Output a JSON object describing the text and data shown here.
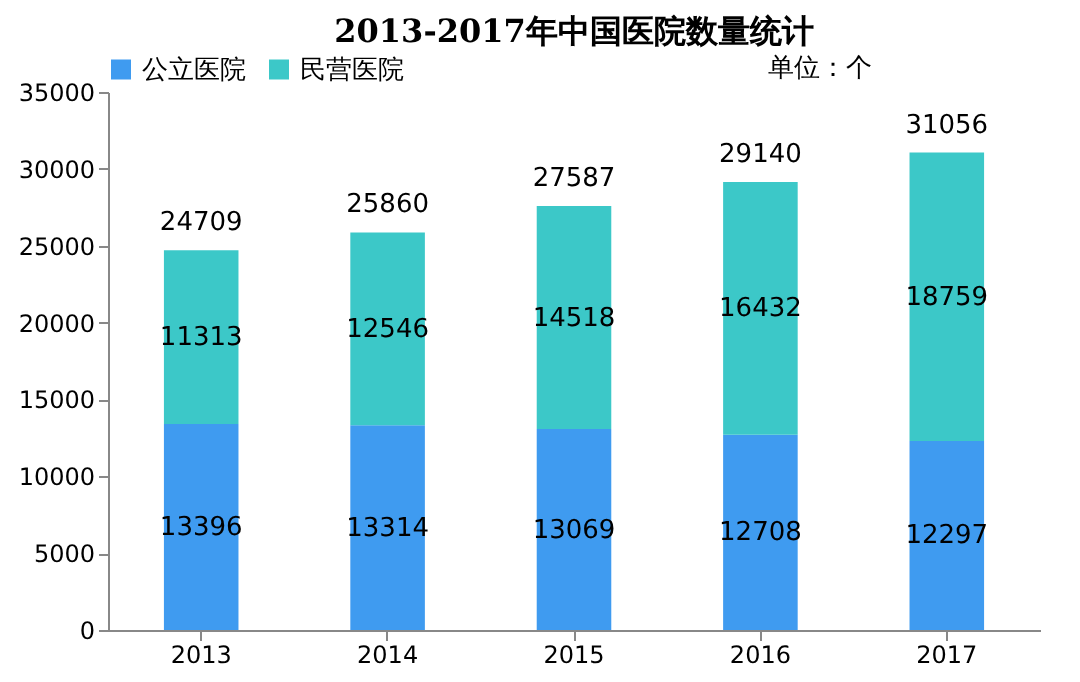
{
  "chart_data": {
    "type": "bar",
    "stacked": true,
    "title": "2013-2017年中国医院数量统计",
    "categories": [
      "2013",
      "2014",
      "2015",
      "2016",
      "2017"
    ],
    "series": [
      {
        "name": "公立医院",
        "color": "#3f9bf0",
        "values": [
          13396,
          13314,
          13069,
          12708,
          12297
        ]
      },
      {
        "name": "民营医院",
        "color": "#3cc8c8",
        "values": [
          11313,
          12546,
          14518,
          16432,
          18759
        ]
      }
    ],
    "totals": [
      "24709",
      "25860",
      "27587",
      "29140",
      "31056"
    ],
    "data_labels": true,
    "ylim": [
      0,
      35000
    ],
    "yticks": [
      0,
      5000,
      10000,
      15000,
      20000,
      25000,
      30000,
      35000
    ],
    "grid": false,
    "legend": "top",
    "annotations": [
      "单位：个"
    ]
  }
}
